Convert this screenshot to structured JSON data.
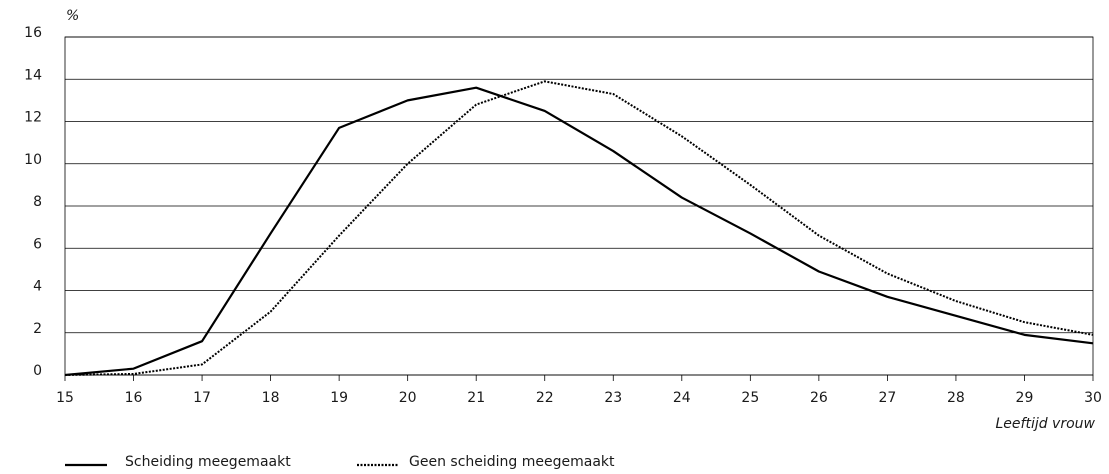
{
  "chart_data": {
    "type": "line",
    "y_unit_label": "%",
    "x_label": "Leeftijd vrouw",
    "x": [
      15,
      16,
      17,
      18,
      19,
      20,
      21,
      22,
      23,
      24,
      25,
      26,
      27,
      28,
      29,
      30
    ],
    "series": [
      {
        "name": "Scheiding meegemaakt",
        "color": "#000000",
        "style": "solid",
        "values": [
          0,
          0.3,
          1.6,
          6.7,
          11.7,
          13,
          13.6,
          12.5,
          10.6,
          8.4,
          6.7,
          4.9,
          3.7,
          2.8,
          1.9,
          1.5
        ]
      },
      {
        "name": "Geen scheiding meegemaakt",
        "color": "#000000",
        "style": "dotted",
        "values": [
          0,
          0.05,
          0.5,
          3,
          6.6,
          10,
          12.8,
          13.9,
          13.3,
          11.3,
          9,
          6.6,
          4.8,
          3.5,
          2.5,
          1.9
        ]
      }
    ],
    "xlim": [
      15,
      30
    ],
    "xticks": [
      15,
      16,
      17,
      18,
      19,
      20,
      21,
      22,
      23,
      24,
      25,
      26,
      27,
      28,
      29,
      30
    ],
    "ylim": [
      0,
      16
    ],
    "yticks": [
      0,
      2,
      4,
      6,
      8,
      10,
      12,
      14,
      16
    ],
    "grid": true,
    "legend": "bottom-left"
  }
}
